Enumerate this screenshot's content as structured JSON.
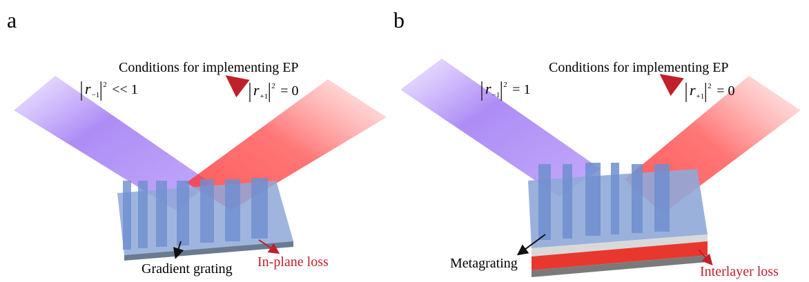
{
  "panel_a": {
    "label": "a",
    "title": "Conditions for implementing EP",
    "formula_left": {
      "symbol": "r",
      "subscript": "−1",
      "superscript": "2",
      "relation": "<< 1"
    },
    "formula_right": {
      "symbol": "r",
      "subscript": "+1",
      "superscript": "2",
      "relation": "= 0"
    },
    "grating_label": "Gradient grating",
    "loss_label": "In-plane loss"
  },
  "panel_b": {
    "label": "b",
    "title": "Conditions for implementing EP",
    "formula_left": {
      "symbol": "r",
      "subscript": "−1",
      "superscript": "2",
      "relation": "= 1"
    },
    "formula_right": {
      "symbol": "r",
      "subscript": "+1",
      "superscript": "2",
      "relation": "= 0"
    },
    "grating_label": "Metagrating",
    "loss_label": "Interlayer loss"
  }
}
